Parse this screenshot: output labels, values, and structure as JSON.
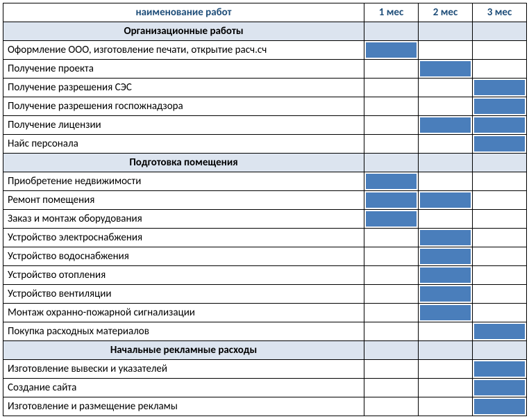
{
  "table": {
    "type": "gantt-table",
    "columns": {
      "work": "наименование работ",
      "months": [
        "1 мес",
        "2 мес",
        "3 мес"
      ]
    },
    "num_months": 3,
    "sections": [
      {
        "title": "Организационные работы",
        "rows": [
          {
            "label": "Оформление ООО, изготовление печати, открытие расч.сч",
            "fill": [
              true,
              false,
              false
            ]
          },
          {
            "label": "Получение проекта",
            "fill": [
              false,
              true,
              false
            ]
          },
          {
            "label": "Получение разрешения СЭС",
            "fill": [
              false,
              false,
              true
            ]
          },
          {
            "label": "Получение разрешения госпожнадзора",
            "fill": [
              false,
              false,
              true
            ]
          },
          {
            "label": "Получение лицензии",
            "fill": [
              false,
              true,
              true
            ]
          },
          {
            "label": "Найс персонала",
            "fill": [
              false,
              false,
              true
            ]
          }
        ]
      },
      {
        "title": "Подготовка помещения",
        "rows": [
          {
            "label": "Приобретение недвижимости",
            "fill": [
              true,
              false,
              false
            ]
          },
          {
            "label": "Ремонт помещения",
            "fill": [
              true,
              true,
              false
            ]
          },
          {
            "label": "Заказ и монтаж оборудования",
            "fill": [
              true,
              false,
              false
            ]
          },
          {
            "label": "Устройство электроснабжения",
            "fill": [
              false,
              true,
              false
            ]
          },
          {
            "label": "Устройство водоснабжения",
            "fill": [
              false,
              true,
              false
            ]
          },
          {
            "label": "Устройство отопления",
            "fill": [
              false,
              true,
              false
            ]
          },
          {
            "label": "Устройство вентиляции",
            "fill": [
              false,
              true,
              false
            ]
          },
          {
            "label": "Монтаж охранно-пожарной сигнализации",
            "fill": [
              false,
              true,
              false
            ]
          },
          {
            "label": "Покупка расходных материалов",
            "fill": [
              false,
              false,
              true
            ]
          }
        ]
      },
      {
        "title": "Начальные рекламные расходы",
        "rows": [
          {
            "label": "Изготовление вывески и указателей",
            "fill": [
              false,
              false,
              true
            ]
          },
          {
            "label": "Создание сайта",
            "fill": [
              false,
              false,
              true
            ]
          },
          {
            "label": "Изготовление и размещение рекламы",
            "fill": [
              false,
              false,
              true
            ]
          }
        ]
      }
    ],
    "style": {
      "header_text_color": "#1f4e79",
      "section_bg_color": "#dce4ef",
      "fill_color": "#4a7ebb",
      "border_color": "#000000",
      "font_family": "Calibri",
      "font_size": 15
    }
  }
}
